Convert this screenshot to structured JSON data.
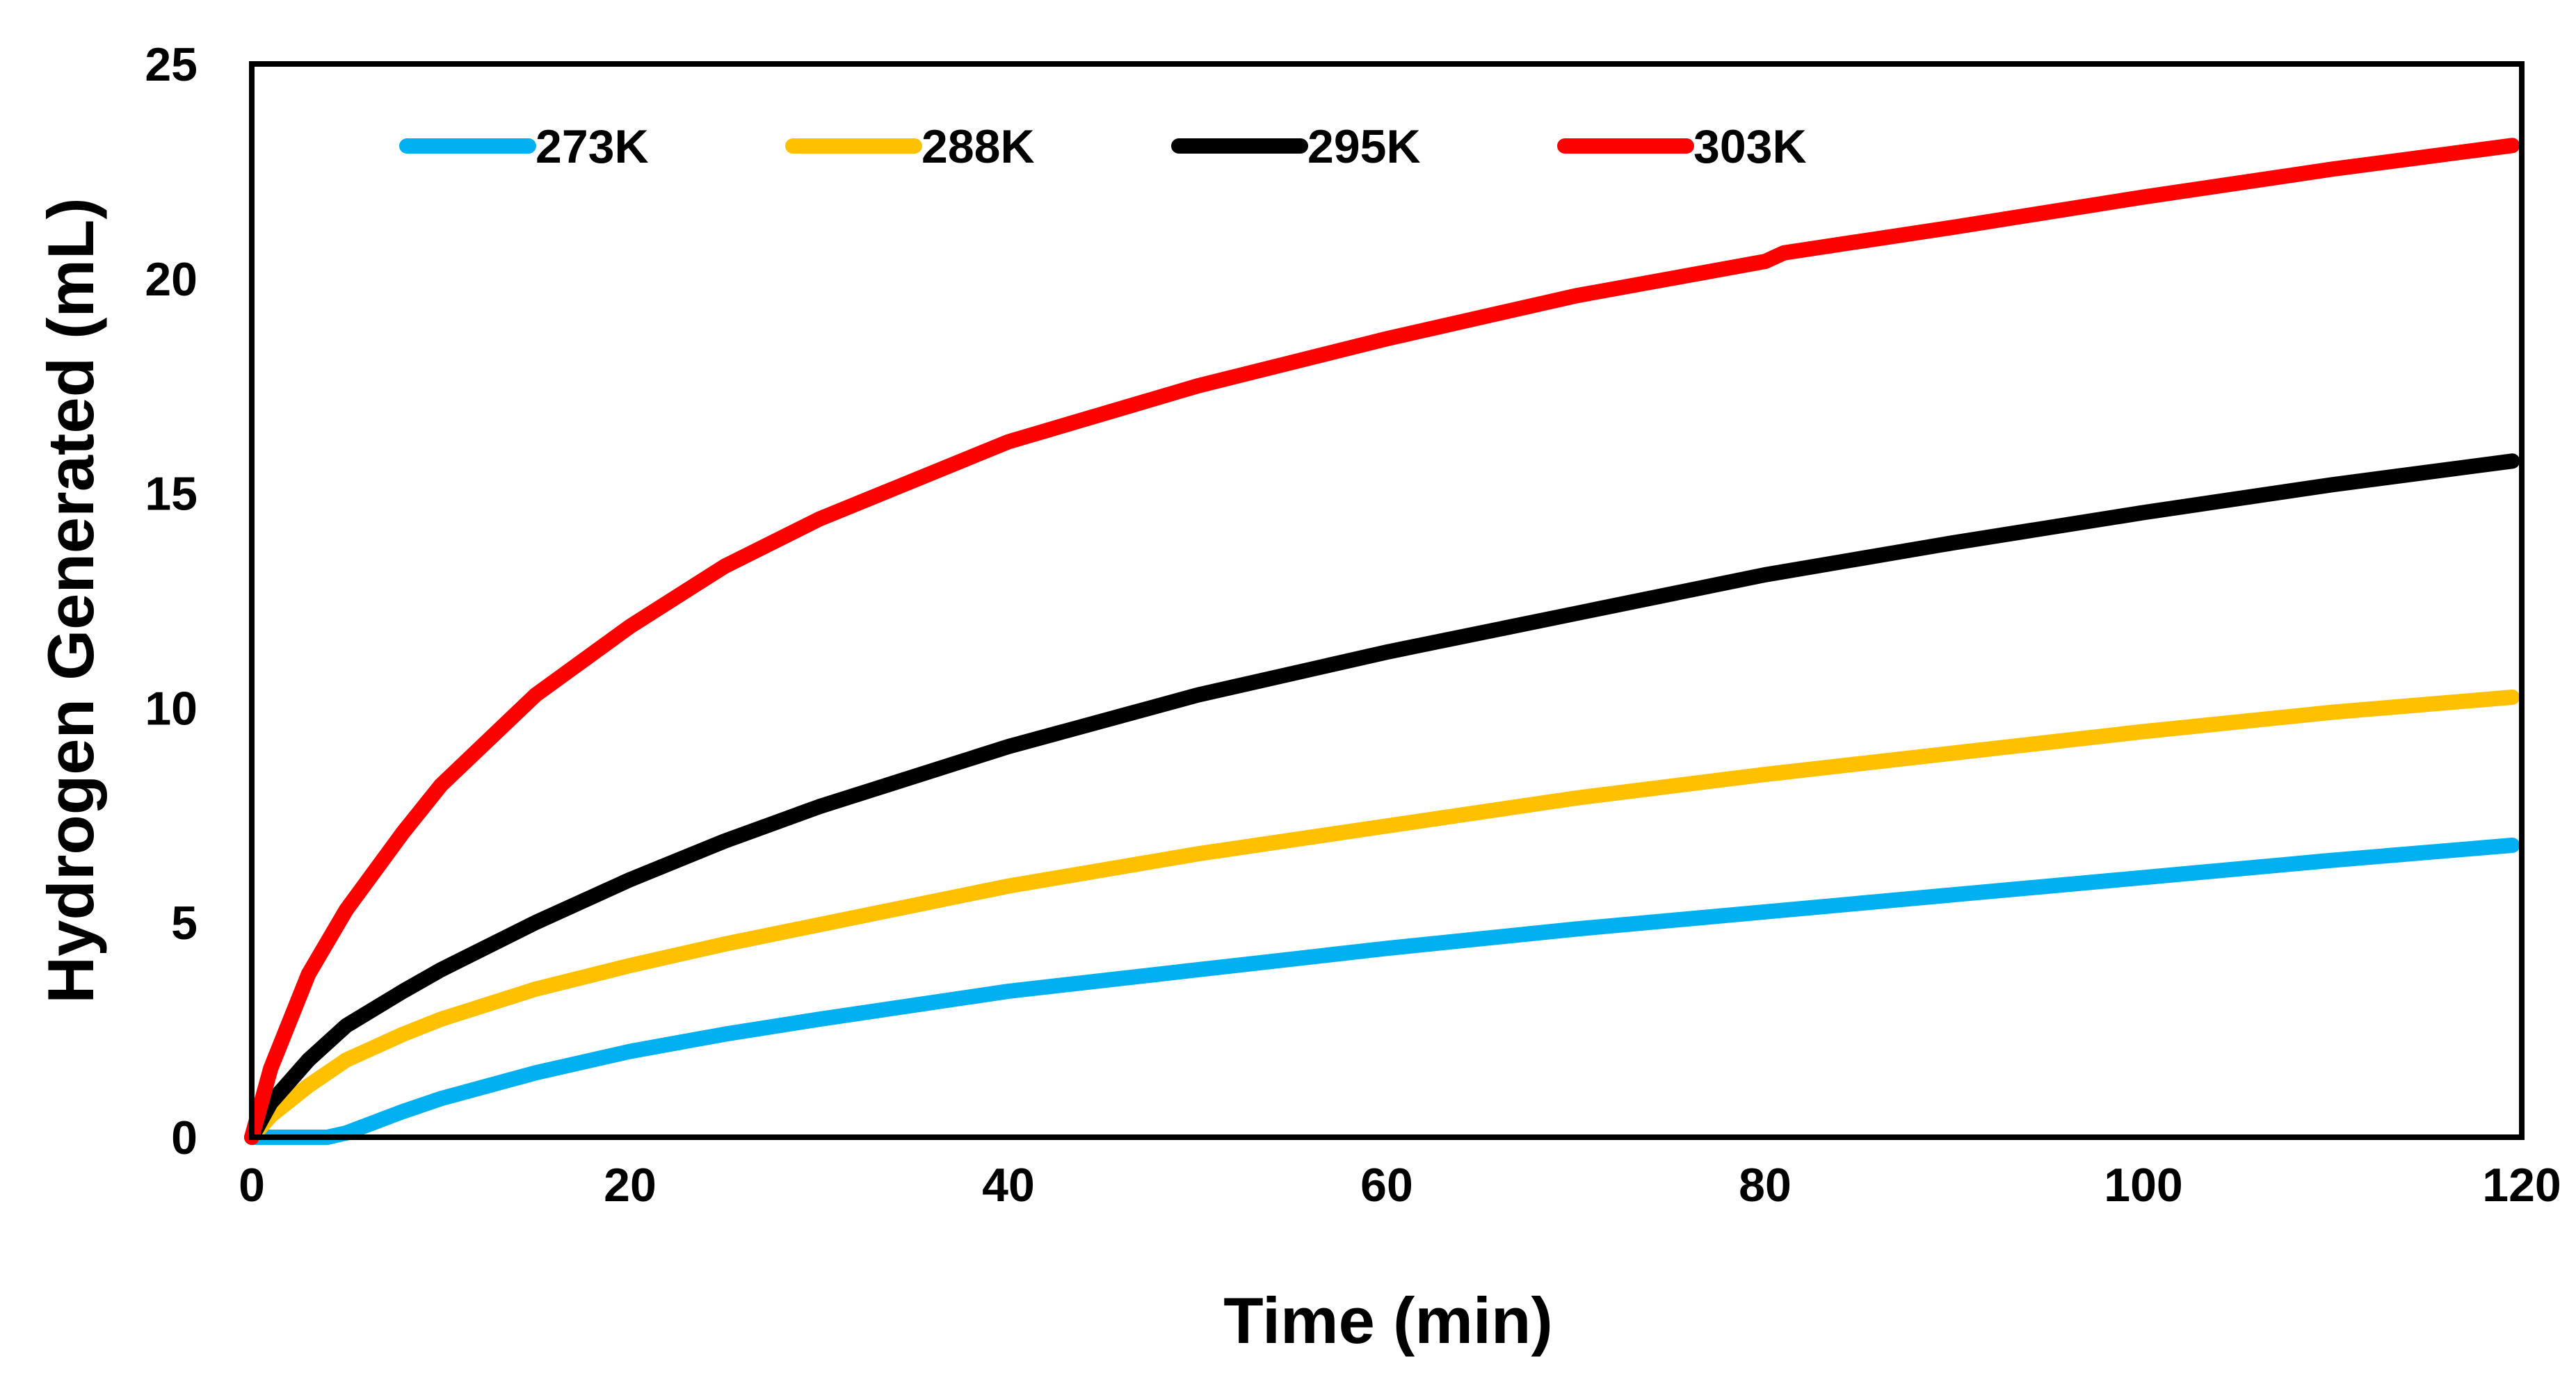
{
  "chart_data": {
    "type": "line",
    "title": "",
    "xlabel": "Time (min)",
    "ylabel": "Hydrogen Generated (mL)",
    "xlim": [
      0,
      120
    ],
    "ylim": [
      0,
      25
    ],
    "xticks": [
      0,
      20,
      40,
      60,
      80,
      100,
      120
    ],
    "yticks": [
      0,
      5,
      10,
      15,
      20,
      25
    ],
    "grid": false,
    "legend": {
      "position": "top-inside",
      "orientation": "horizontal"
    },
    "series": [
      {
        "name": "273K",
        "color": "#00B0F0",
        "points": [
          [
            0,
            0
          ],
          [
            2,
            0
          ],
          [
            4,
            0
          ],
          [
            5,
            0.1
          ],
          [
            8,
            0.6
          ],
          [
            10,
            0.9
          ],
          [
            15,
            1.5
          ],
          [
            20,
            2.0
          ],
          [
            25,
            2.4
          ],
          [
            30,
            2.75
          ],
          [
            40,
            3.4
          ],
          [
            50,
            3.9
          ],
          [
            60,
            4.4
          ],
          [
            70,
            4.85
          ],
          [
            80,
            5.25
          ],
          [
            90,
            5.65
          ],
          [
            100,
            6.05
          ],
          [
            110,
            6.45
          ],
          [
            119.5,
            6.8
          ]
        ]
      },
      {
        "name": "288K",
        "color": "#FFC000",
        "points": [
          [
            0,
            0
          ],
          [
            1,
            0.5
          ],
          [
            3,
            1.2
          ],
          [
            5,
            1.8
          ],
          [
            8,
            2.4
          ],
          [
            10,
            2.75
          ],
          [
            15,
            3.45
          ],
          [
            20,
            4.0
          ],
          [
            25,
            4.5
          ],
          [
            30,
            4.95
          ],
          [
            40,
            5.85
          ],
          [
            50,
            6.6
          ],
          [
            60,
            7.25
          ],
          [
            70,
            7.9
          ],
          [
            80,
            8.45
          ],
          [
            90,
            8.95
          ],
          [
            100,
            9.45
          ],
          [
            110,
            9.9
          ],
          [
            119.5,
            10.25
          ]
        ]
      },
      {
        "name": "295K",
        "color": "#000000",
        "points": [
          [
            0,
            0
          ],
          [
            1,
            0.8
          ],
          [
            3,
            1.8
          ],
          [
            5,
            2.6
          ],
          [
            8,
            3.4
          ],
          [
            10,
            3.9
          ],
          [
            15,
            5.0
          ],
          [
            20,
            6.0
          ],
          [
            25,
            6.9
          ],
          [
            30,
            7.7
          ],
          [
            40,
            9.1
          ],
          [
            50,
            10.3
          ],
          [
            60,
            11.3
          ],
          [
            70,
            12.2
          ],
          [
            80,
            13.1
          ],
          [
            90,
            13.85
          ],
          [
            100,
            14.55
          ],
          [
            110,
            15.2
          ],
          [
            119.5,
            15.75
          ]
        ]
      },
      {
        "name": "303K",
        "color": "#FF0000",
        "points": [
          [
            0,
            0
          ],
          [
            1,
            1.6
          ],
          [
            3,
            3.8
          ],
          [
            5,
            5.3
          ],
          [
            8,
            7.1
          ],
          [
            10,
            8.2
          ],
          [
            15,
            10.3
          ],
          [
            20,
            11.9
          ],
          [
            25,
            13.3
          ],
          [
            30,
            14.4
          ],
          [
            40,
            16.2
          ],
          [
            50,
            17.5
          ],
          [
            60,
            18.6
          ],
          [
            70,
            19.6
          ],
          [
            80,
            20.4
          ],
          [
            81,
            20.6
          ],
          [
            90,
            21.2
          ],
          [
            100,
            21.9
          ],
          [
            110,
            22.55
          ],
          [
            119.5,
            23.1
          ]
        ]
      }
    ]
  }
}
